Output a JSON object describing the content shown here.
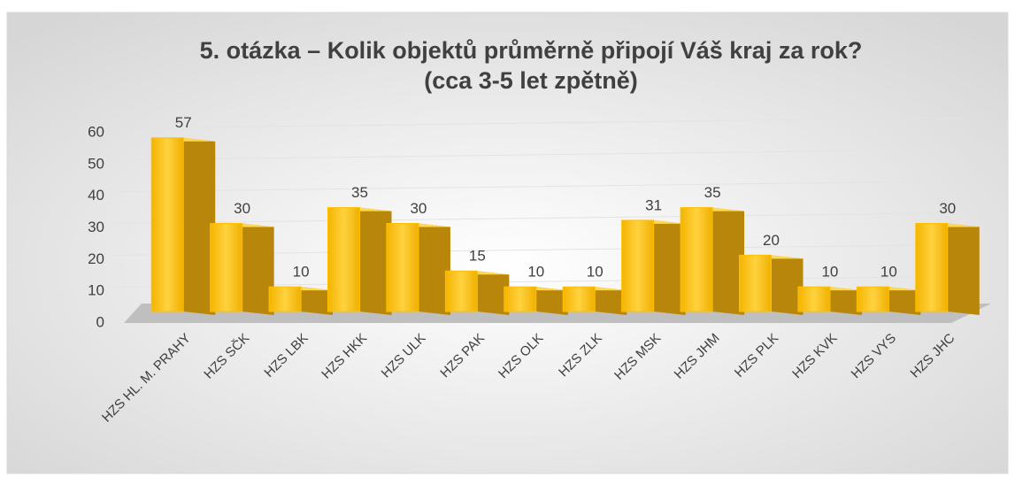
{
  "chart_data": {
    "type": "bar3d",
    "title": "5. otázka – Kolik objektů průměrně připojí Váš kraj za rok?",
    "subtitle": "(cca 3-5 let zpětně)",
    "categories": [
      "HZS HL. M. PRAHY",
      "HZS SČK",
      "HZS LBK",
      "HZS HKK",
      "HZS ULK",
      "HZS PAK",
      "HZS OLK",
      "HZS ZLK",
      "HZS MSK",
      "HZS JHM",
      "HZS PLK",
      "HZS KVK",
      "HZS VYS",
      "HZS JHC"
    ],
    "values": [
      57,
      30,
      10,
      35,
      30,
      15,
      10,
      10,
      31,
      35,
      20,
      10,
      10,
      30
    ],
    "color": "#ffc000",
    "ylim": [
      0,
      60
    ],
    "yticks": [
      0,
      10,
      20,
      30,
      40,
      50,
      60
    ],
    "grid": true
  }
}
